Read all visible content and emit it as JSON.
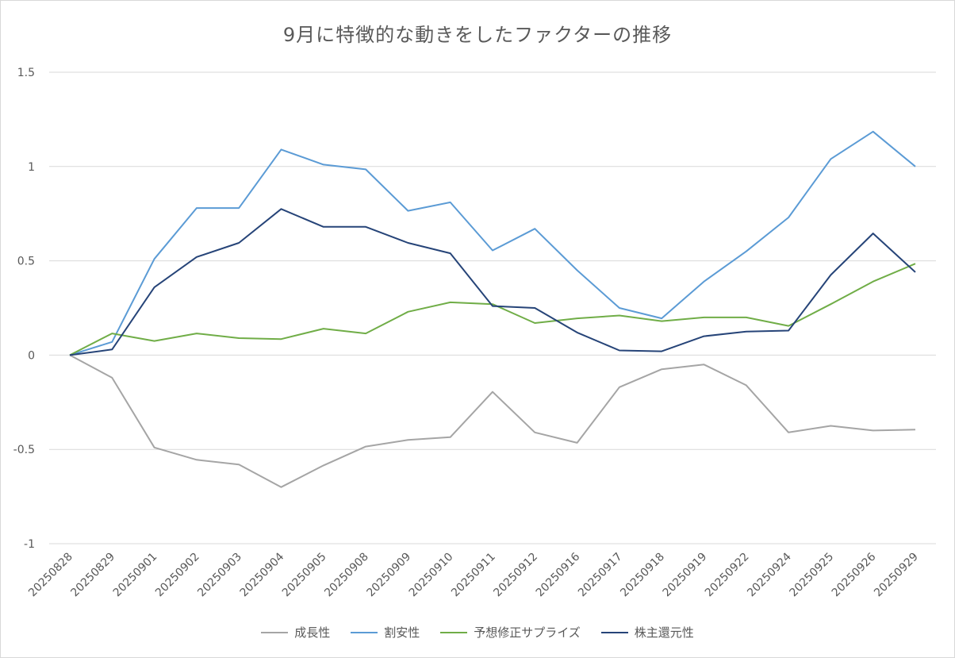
{
  "chart_data": {
    "type": "line",
    "title": "9月に特徴的な動きをしたファクターの推移",
    "categories": [
      "20250828",
      "20250829",
      "20250901",
      "20250902",
      "20250903",
      "20250904",
      "20250905",
      "20250908",
      "20250909",
      "20250910",
      "20250911",
      "20250912",
      "20250916",
      "20250917",
      "20250918",
      "20250919",
      "20250922",
      "20250924",
      "20250925",
      "20250926",
      "20250929"
    ],
    "ylim": [
      -1,
      1.5
    ],
    "yticks": [
      -1,
      -0.5,
      0,
      0.5,
      1,
      1.5
    ],
    "ytick_labels": [
      "-1",
      "-0.5",
      "0",
      "0.5",
      "1",
      "1.5"
    ],
    "grid": true,
    "legend_position": "bottom",
    "series": [
      {
        "name": "成長性",
        "color": "#a5a5a5",
        "values": [
          0,
          -0.12,
          -0.49,
          -0.555,
          -0.58,
          -0.7,
          -0.585,
          -0.485,
          -0.45,
          -0.435,
          -0.195,
          -0.41,
          -0.465,
          -0.17,
          -0.075,
          -0.05,
          -0.16,
          -0.41,
          -0.375,
          -0.4,
          -0.395
        ]
      },
      {
        "name": "割安性",
        "color": "#5b9bd5",
        "values": [
          0,
          0.07,
          0.51,
          0.78,
          0.78,
          1.09,
          1.01,
          0.985,
          0.765,
          0.81,
          0.555,
          0.67,
          0.45,
          0.25,
          0.195,
          0.39,
          0.55,
          0.73,
          1.04,
          1.185,
          1.0
        ]
      },
      {
        "name": "予想修正サプライズ",
        "color": "#70ad47",
        "values": [
          0,
          0.115,
          0.075,
          0.115,
          0.09,
          0.085,
          0.14,
          0.115,
          0.23,
          0.28,
          0.27,
          0.17,
          0.195,
          0.21,
          0.18,
          0.2,
          0.2,
          0.155,
          0.27,
          0.39,
          0.485
        ]
      },
      {
        "name": "株主還元性",
        "color": "#264478",
        "values": [
          0,
          0.03,
          0.36,
          0.52,
          0.595,
          0.775,
          0.68,
          0.68,
          0.595,
          0.54,
          0.26,
          0.25,
          0.12,
          0.025,
          0.02,
          0.1,
          0.125,
          0.13,
          0.425,
          0.645,
          0.44
        ]
      }
    ]
  }
}
